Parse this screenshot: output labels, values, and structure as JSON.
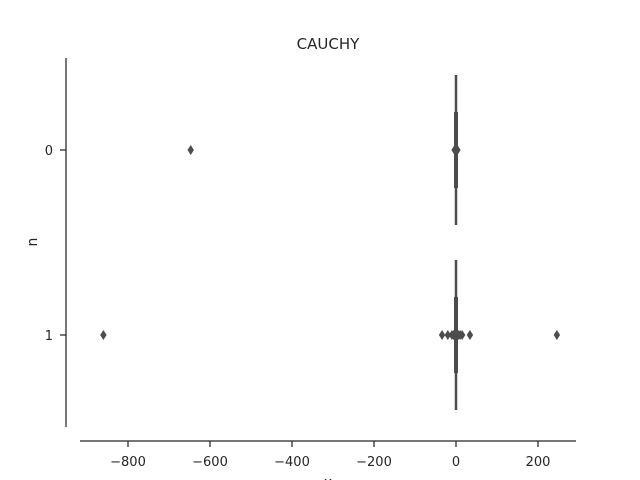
{
  "chart_data": {
    "type": "boxplot",
    "orientation": "horizontal",
    "title": "CAUCHY",
    "xlabel": "x",
    "ylabel": "n",
    "xlim": [
      -930,
      300
    ],
    "xticks": [
      -800,
      -600,
      -400,
      -200,
      0,
      200
    ],
    "xtick_labels": [
      "−800",
      "−600",
      "−400",
      "−200",
      "0",
      "200"
    ],
    "categories": [
      "0",
      "1"
    ],
    "box_color": "#4c4c4c",
    "series": [
      {
        "category": "0",
        "q1": -0.6,
        "median": 0.0,
        "q3": 0.6,
        "whisker_low": -2.5,
        "whisker_high": 2.5,
        "outliers": [
          -647,
          -3.5,
          -2.8,
          2.8,
          3.5
        ]
      },
      {
        "category": "1",
        "q1": -0.8,
        "median": 0.0,
        "q3": 0.8,
        "whisker_low": -3.0,
        "whisker_high": 3.0,
        "outliers": [
          -860,
          -34,
          -20,
          -10,
          -6,
          -4,
          4,
          6,
          10,
          15,
          34,
          246
        ]
      }
    ]
  }
}
